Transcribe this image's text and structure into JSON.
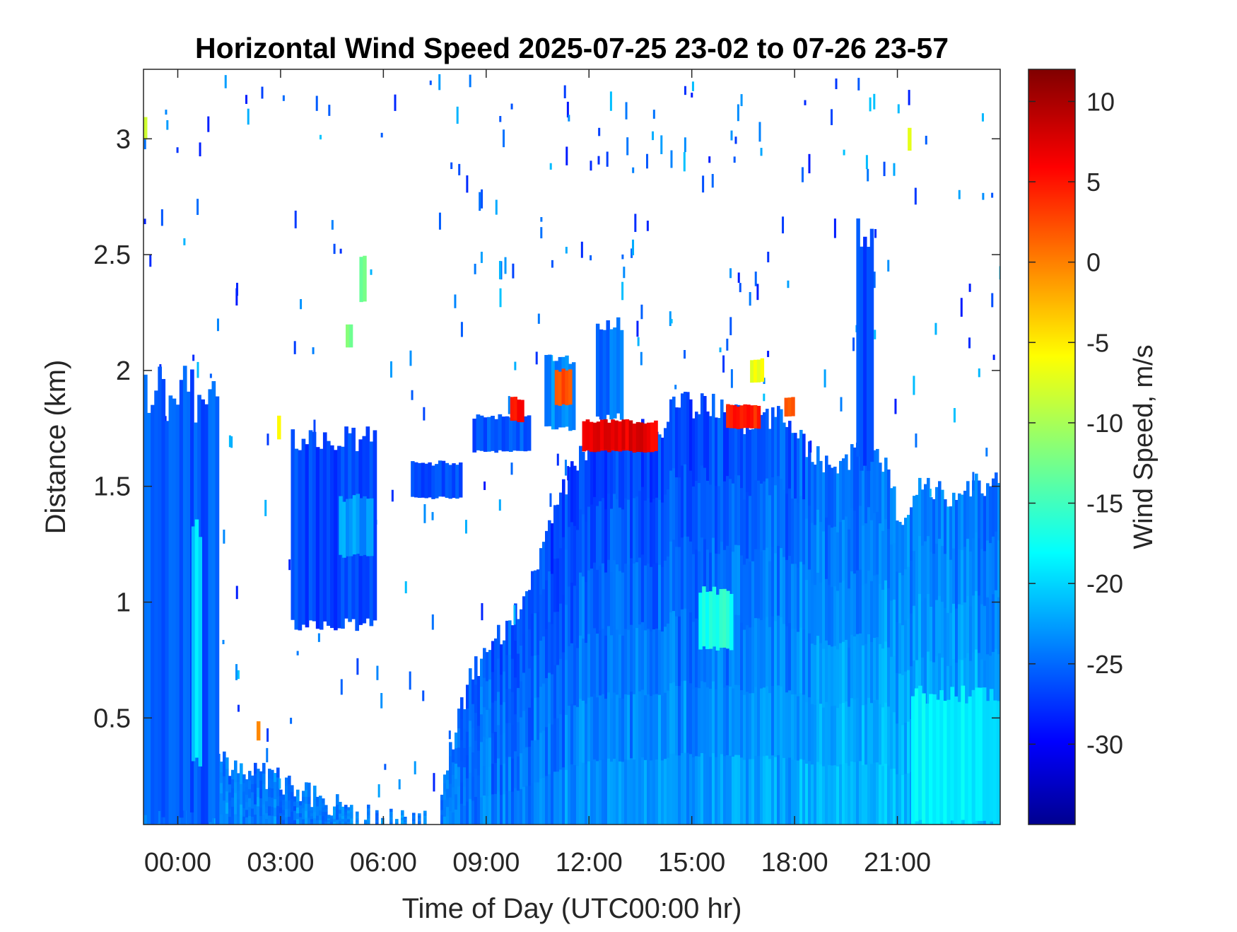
{
  "chart_data": {
    "type": "heatmap",
    "title": "Horizontal Wind Speed 2025-07-25 23-02 to 07-26 23-57",
    "xlabel": "Time of Day (UTC00:00 hr)",
    "ylabel": "Distance (km)",
    "x_range_hours": [
      -1.0,
      24.0
    ],
    "xticks": [
      {
        "value": 0,
        "label": "00:00"
      },
      {
        "value": 3,
        "label": "03:00"
      },
      {
        "value": 6,
        "label": "06:00"
      },
      {
        "value": 9,
        "label": "09:00"
      },
      {
        "value": 12,
        "label": "12:00"
      },
      {
        "value": 15,
        "label": "15:00"
      },
      {
        "value": 18,
        "label": "18:00"
      },
      {
        "value": 21,
        "label": "21:00"
      }
    ],
    "ylim": [
      0.04,
      3.3
    ],
    "yticks": [
      {
        "value": 0.5,
        "label": "0.5"
      },
      {
        "value": 1,
        "label": "1"
      },
      {
        "value": 1.5,
        "label": "1.5"
      },
      {
        "value": 2,
        "label": "2"
      },
      {
        "value": 2.5,
        "label": "2.5"
      },
      {
        "value": 3,
        "label": "3"
      }
    ],
    "colorbar": {
      "label": "Wind Speed, m/s",
      "colormap": "jet",
      "clim": [
        -35,
        12
      ],
      "ticks": [
        {
          "value": 10,
          "label": "10"
        },
        {
          "value": 5,
          "label": "5"
        },
        {
          "value": 0,
          "label": "0"
        },
        {
          "value": -5,
          "label": "-5"
        },
        {
          "value": -10,
          "label": "-10"
        },
        {
          "value": -15,
          "label": "-15"
        },
        {
          "value": -20,
          "label": "-20"
        },
        {
          "value": -25,
          "label": "-25"
        },
        {
          "value": -30,
          "label": "-30"
        }
      ]
    },
    "data_top_profile_km": [
      {
        "x": -1.0,
        "top": 1.4
      },
      {
        "x": -0.5,
        "top": 1.9
      },
      {
        "x": 0.0,
        "top": 1.35
      },
      {
        "x": 0.6,
        "top": 0.5
      },
      {
        "x": 1.2,
        "top": 0.3
      },
      {
        "x": 2.5,
        "top": 0.25
      },
      {
        "x": 3.5,
        "top": 0.2
      },
      {
        "x": 4.5,
        "top": 0.12
      },
      {
        "x": 6.0,
        "top": 0.05
      },
      {
        "x": 7.5,
        "top": 0.05
      },
      {
        "x": 8.2,
        "top": 0.55
      },
      {
        "x": 8.6,
        "top": 0.7
      },
      {
        "x": 9.0,
        "top": 0.8
      },
      {
        "x": 9.8,
        "top": 0.95
      },
      {
        "x": 10.5,
        "top": 1.15
      },
      {
        "x": 11.0,
        "top": 1.45
      },
      {
        "x": 11.6,
        "top": 1.6
      },
      {
        "x": 12.0,
        "top": 1.7
      },
      {
        "x": 13.0,
        "top": 1.72
      },
      {
        "x": 14.0,
        "top": 1.75
      },
      {
        "x": 14.5,
        "top": 1.85
      },
      {
        "x": 15.5,
        "top": 1.85
      },
      {
        "x": 16.5,
        "top": 1.78
      },
      {
        "x": 17.5,
        "top": 1.8
      },
      {
        "x": 18.0,
        "top": 1.7
      },
      {
        "x": 19.0,
        "top": 1.6
      },
      {
        "x": 20.0,
        "top": 1.65
      },
      {
        "x": 20.7,
        "top": 1.6
      },
      {
        "x": 21.0,
        "top": 1.35
      },
      {
        "x": 21.5,
        "top": 1.5
      },
      {
        "x": 22.5,
        "top": 1.45
      },
      {
        "x": 23.2,
        "top": 1.5
      },
      {
        "x": 24.0,
        "top": 1.5
      }
    ],
    "features": [
      {
        "x0": -1.0,
        "x1": 1.2,
        "y0": 0.04,
        "y1": 1.9,
        "value": -25
      },
      {
        "x0": 0.4,
        "x1": 0.7,
        "y0": 0.3,
        "y1": 1.3,
        "value": -19
      },
      {
        "x0": 3.3,
        "x1": 5.8,
        "y0": 0.9,
        "y1": 1.7,
        "value": -26
      },
      {
        "x0": 4.7,
        "x1": 5.7,
        "y0": 1.2,
        "y1": 1.45,
        "value": -22
      },
      {
        "x0": 6.8,
        "x1": 8.3,
        "y0": 1.45,
        "y1": 1.6,
        "value": -26
      },
      {
        "x0": 8.6,
        "x1": 10.3,
        "y0": 1.65,
        "y1": 1.8,
        "value": -25
      },
      {
        "x0": 10.7,
        "x1": 11.6,
        "y0": 1.75,
        "y1": 2.05,
        "value": -23
      },
      {
        "x0": 12.2,
        "x1": 13.0,
        "y0": 1.8,
        "y1": 2.2,
        "value": -24
      },
      {
        "x0": 15.2,
        "x1": 16.2,
        "y0": 0.8,
        "y1": 1.05,
        "value": -16
      },
      {
        "x0": 19.8,
        "x1": 20.3,
        "y0": 1.6,
        "y1": 2.6,
        "value": -26
      },
      {
        "x0": 21.4,
        "x1": 24.0,
        "y0": 0.04,
        "y1": 0.6,
        "value": -18
      },
      {
        "x0": 11.8,
        "x1": 14.0,
        "y0": 1.65,
        "y1": 1.78,
        "value": 7
      },
      {
        "x0": 9.7,
        "x1": 10.1,
        "y0": 1.78,
        "y1": 1.88,
        "value": 6
      },
      {
        "x0": 11.0,
        "x1": 11.5,
        "y0": 1.85,
        "y1": 2.0,
        "value": 3
      },
      {
        "x0": 16.0,
        "x1": 17.0,
        "y0": 1.75,
        "y1": 1.85,
        "value": 5
      },
      {
        "x0": 16.7,
        "x1": 17.1,
        "y0": 1.95,
        "y1": 2.05,
        "value": -6
      },
      {
        "x0": 17.7,
        "x1": 18.0,
        "y0": 1.8,
        "y1": 1.88,
        "value": 2
      },
      {
        "x0": 5.3,
        "x1": 5.5,
        "y0": 2.3,
        "y1": 2.5,
        "value": -12
      },
      {
        "x0": 4.9,
        "x1": 5.1,
        "y0": 2.1,
        "y1": 2.2,
        "value": -12
      },
      {
        "x0": 2.9,
        "x1": 3.0,
        "y0": 1.7,
        "y1": 1.8,
        "value": -4
      },
      {
        "x0": 2.3,
        "x1": 2.4,
        "y0": 0.4,
        "y1": 0.48,
        "value": 0
      },
      {
        "x0": 21.3,
        "x1": 21.4,
        "y0": 2.95,
        "y1": 3.05,
        "value": -8
      },
      {
        "x0": -1.0,
        "x1": -0.9,
        "y0": 3.0,
        "y1": 3.1,
        "value": -7
      }
    ]
  }
}
